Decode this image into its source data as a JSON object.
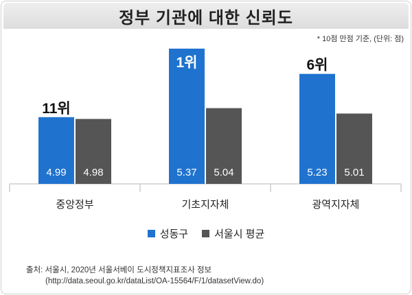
{
  "note": "* 10점 만점 기준, (단위: 점)",
  "chart_data": {
    "type": "bar",
    "title": "정부 기관에 대한 신뢰도",
    "categories": [
      "중앙정부",
      "기초지자체",
      "광역지자체"
    ],
    "series": [
      {
        "name": "성동구",
        "values": [
          4.99,
          5.37,
          5.23
        ],
        "color": "#1f73cf"
      },
      {
        "name": "서울시 평균",
        "values": [
          4.98,
          5.04,
          5.01
        ],
        "color": "#555555"
      }
    ],
    "rank_labels": [
      "11위",
      "1위",
      "6위"
    ],
    "xlabel": "",
    "ylabel": "",
    "ylim": [
      4.62,
      5.4
    ],
    "grid": false,
    "legend": "bottom-center"
  },
  "source": {
    "line1": "출처: 서울시, 2020년 서울서베이 도시정책지표조사 정보",
    "line2": "(http://data.seoul.go.kr/dataList/OA-15564/F/1/datasetView.do)"
  }
}
